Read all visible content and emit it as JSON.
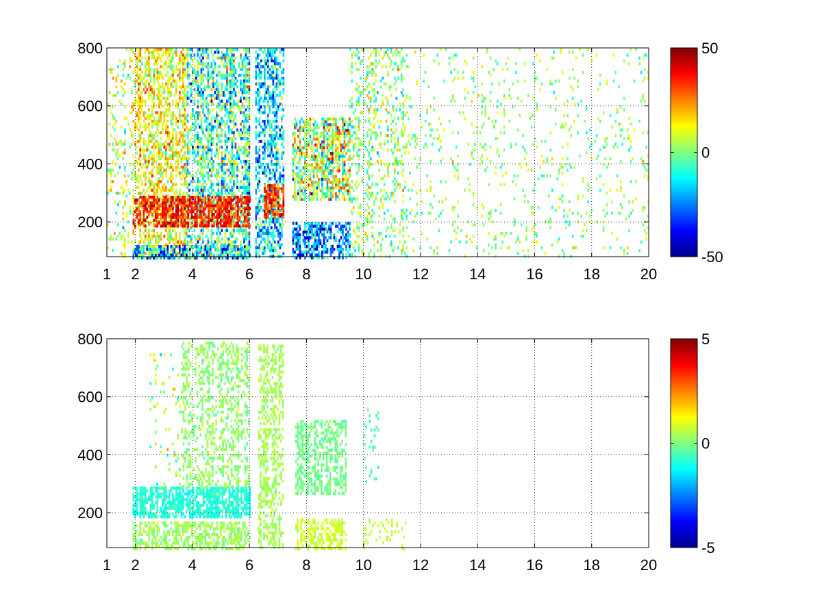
{
  "figure": {
    "background": "#ffffff"
  },
  "chart_data": [
    {
      "type": "heatmap",
      "title": "",
      "xlabel": "",
      "ylabel": "",
      "xlim": [
        1,
        20
      ],
      "ylim": [
        80,
        800
      ],
      "xticks": [
        1,
        2,
        4,
        6,
        8,
        10,
        12,
        14,
        16,
        18,
        20
      ],
      "xtick_labels": [
        "1",
        "2",
        "4",
        "6",
        "8",
        "10",
        "12",
        "14",
        "16",
        "18",
        "20"
      ],
      "xgrid": [
        2,
        4,
        6,
        8,
        10,
        12,
        14,
        16,
        18,
        20
      ],
      "yticks": [
        200,
        400,
        600,
        800
      ],
      "ytick_labels": [
        "200",
        "400",
        "600",
        "800"
      ],
      "grid": true,
      "grid_style": "dotted",
      "colormap": "jet",
      "colorbar": {
        "clim": [
          -50,
          50
        ],
        "ticks": [
          50,
          0,
          -50
        ],
        "tick_labels": [
          "50",
          "0",
          "-50"
        ]
      },
      "clusters": [
        {
          "x": [
            1.0,
            1.9
          ],
          "y": [
            80,
            800
          ],
          "density": 0.24,
          "mean": 6,
          "spread": 15
        },
        {
          "x": [
            1.9,
            3.8
          ],
          "y": [
            80,
            800
          ],
          "density": 0.6,
          "mean": 12,
          "spread": 14
        },
        {
          "x": [
            3.8,
            6.0
          ],
          "y": [
            80,
            800
          ],
          "density": 0.68,
          "mean": -6,
          "spread": 22
        },
        {
          "x": [
            1.9,
            6.0
          ],
          "y": [
            190,
            290
          ],
          "density": 0.88,
          "mean": 34,
          "spread": 10
        },
        {
          "x": [
            1.9,
            6.0
          ],
          "y": [
            80,
            120
          ],
          "density": 0.9,
          "mean": -15,
          "spread": 28
        },
        {
          "x": [
            6.2,
            7.2
          ],
          "y": [
            80,
            800
          ],
          "density": 0.65,
          "mean": -16,
          "spread": 18
        },
        {
          "x": [
            6.5,
            7.2
          ],
          "y": [
            220,
            330
          ],
          "density": 0.9,
          "mean": 32,
          "spread": 12
        },
        {
          "x": [
            7.5,
            9.5
          ],
          "y": [
            280,
            560
          ],
          "density": 0.8,
          "mean": 6,
          "spread": 24
        },
        {
          "x": [
            7.5,
            9.5
          ],
          "y": [
            80,
            200
          ],
          "density": 0.72,
          "mean": -24,
          "spread": 18
        },
        {
          "x": [
            9.5,
            11.6
          ],
          "y": [
            80,
            800
          ],
          "density": 0.3,
          "mean": 2,
          "spread": 14
        },
        {
          "x": [
            11.6,
            20.0
          ],
          "y": [
            80,
            800
          ],
          "density": 0.09,
          "mean": 2,
          "spread": 10
        }
      ]
    },
    {
      "type": "heatmap",
      "title": "",
      "xlabel": "",
      "ylabel": "",
      "xlim": [
        1,
        20
      ],
      "ylim": [
        80,
        800
      ],
      "xticks": [
        1,
        2,
        4,
        6,
        8,
        10,
        12,
        14,
        16,
        18,
        20
      ],
      "xtick_labels": [
        "1",
        "2",
        "4",
        "6",
        "8",
        "10",
        "12",
        "14",
        "16",
        "18",
        "20"
      ],
      "xgrid": [
        2,
        4,
        6,
        8,
        10,
        12,
        14,
        16,
        18,
        20
      ],
      "yticks": [
        200,
        400,
        600,
        800
      ],
      "ytick_labels": [
        "200",
        "400",
        "600",
        "800"
      ],
      "grid": true,
      "grid_style": "dotted",
      "colormap": "jet",
      "colorbar": {
        "clim": [
          -5,
          5
        ],
        "ticks": [
          5,
          0,
          -5
        ],
        "tick_labels": [
          "5",
          "0",
          "-5"
        ]
      },
      "clusters": [
        {
          "x": [
            1.9,
            6.0
          ],
          "y": [
            190,
            290
          ],
          "density": 0.85,
          "mean": -0.9,
          "spread": 0.35
        },
        {
          "x": [
            1.9,
            6.0
          ],
          "y": [
            80,
            170
          ],
          "density": 0.65,
          "mean": 0.3,
          "spread": 0.4
        },
        {
          "x": [
            3.6,
            6.0
          ],
          "y": [
            290,
            790
          ],
          "density": 0.45,
          "mean": 0.2,
          "spread": 0.45
        },
        {
          "x": [
            2.5,
            3.6
          ],
          "y": [
            290,
            760
          ],
          "density": 0.1,
          "mean": 0.2,
          "spread": 1.2
        },
        {
          "x": [
            6.3,
            7.2
          ],
          "y": [
            80,
            780
          ],
          "density": 0.55,
          "mean": 0.4,
          "spread": 0.3
        },
        {
          "x": [
            7.6,
            9.4
          ],
          "y": [
            270,
            520
          ],
          "density": 0.72,
          "mean": -0.1,
          "spread": 0.3
        },
        {
          "x": [
            7.6,
            9.4
          ],
          "y": [
            80,
            180
          ],
          "density": 0.6,
          "mean": 0.8,
          "spread": 0.3
        },
        {
          "x": [
            10.0,
            10.6
          ],
          "y": [
            300,
            570
          ],
          "density": 0.15,
          "mean": -0.5,
          "spread": 0.4
        },
        {
          "x": [
            10.0,
            11.5
          ],
          "y": [
            80,
            180
          ],
          "density": 0.18,
          "mean": 0.7,
          "spread": 0.3
        }
      ]
    }
  ]
}
